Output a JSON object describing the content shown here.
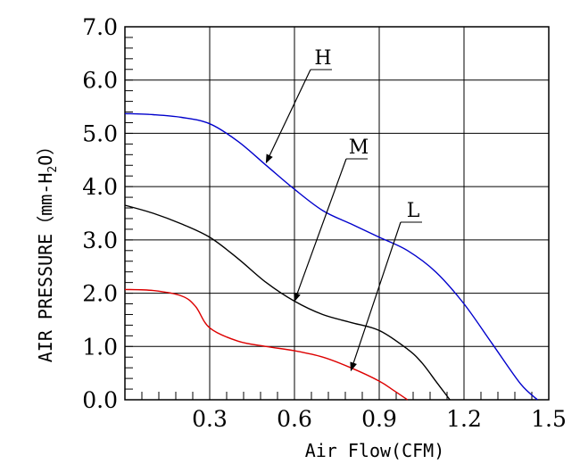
{
  "chart_data": {
    "type": "line",
    "title": "",
    "xlabel": "Air Flow(CFM)",
    "ylabel": "AIR PRESSURE（mm-H2O）",
    "ylabel_parts": {
      "main": "AIR PRESSURE（mm-H",
      "sub": "2",
      "end": "O）"
    },
    "xlim": [
      0,
      1.5
    ],
    "ylim": [
      0,
      7.0
    ],
    "xticks": [
      0.3,
      0.6,
      0.9,
      1.2,
      1.5
    ],
    "xtick_labels": [
      "0.3",
      "0.6",
      "0.9",
      "1.2",
      "1.5"
    ],
    "yticks": [
      0,
      1,
      2,
      3,
      4,
      5,
      6,
      7
    ],
    "ytick_labels": [
      "0.0",
      "1.0",
      "2.0",
      "3.0",
      "4.0",
      "5.0",
      "6.0",
      "7.0"
    ],
    "grid": true,
    "series": [
      {
        "name": "H",
        "color": "#0000cc",
        "x": [
          0,
          0.1,
          0.2,
          0.3,
          0.4,
          0.5,
          0.6,
          0.7,
          0.8,
          0.9,
          1.0,
          1.1,
          1.2,
          1.3,
          1.4,
          1.46
        ],
        "y": [
          5.37,
          5.35,
          5.3,
          5.18,
          4.85,
          4.4,
          3.95,
          3.55,
          3.3,
          3.05,
          2.8,
          2.4,
          1.8,
          1.05,
          0.3,
          0.0
        ]
      },
      {
        "name": "M",
        "color": "#000000",
        "x": [
          0,
          0.1,
          0.2,
          0.3,
          0.4,
          0.5,
          0.6,
          0.7,
          0.8,
          0.9,
          1.0,
          1.05,
          1.1,
          1.15
        ],
        "y": [
          3.65,
          3.5,
          3.3,
          3.05,
          2.65,
          2.2,
          1.85,
          1.6,
          1.45,
          1.3,
          0.95,
          0.7,
          0.35,
          0.0
        ]
      },
      {
        "name": "L",
        "color": "#dd0000",
        "x": [
          0,
          0.1,
          0.2,
          0.25,
          0.3,
          0.4,
          0.5,
          0.6,
          0.7,
          0.8,
          0.9,
          0.95,
          1.0
        ],
        "y": [
          2.07,
          2.05,
          1.95,
          1.75,
          1.35,
          1.1,
          1.0,
          0.92,
          0.8,
          0.6,
          0.35,
          0.18,
          0.0
        ]
      }
    ],
    "annotations": [
      {
        "text": "H",
        "series": "H",
        "point": [
          0.5,
          4.45
        ]
      },
      {
        "text": "M",
        "series": "M",
        "point": [
          0.6,
          1.85
        ]
      },
      {
        "text": "L",
        "series": "L",
        "point": [
          0.8,
          0.55
        ]
      }
    ]
  }
}
